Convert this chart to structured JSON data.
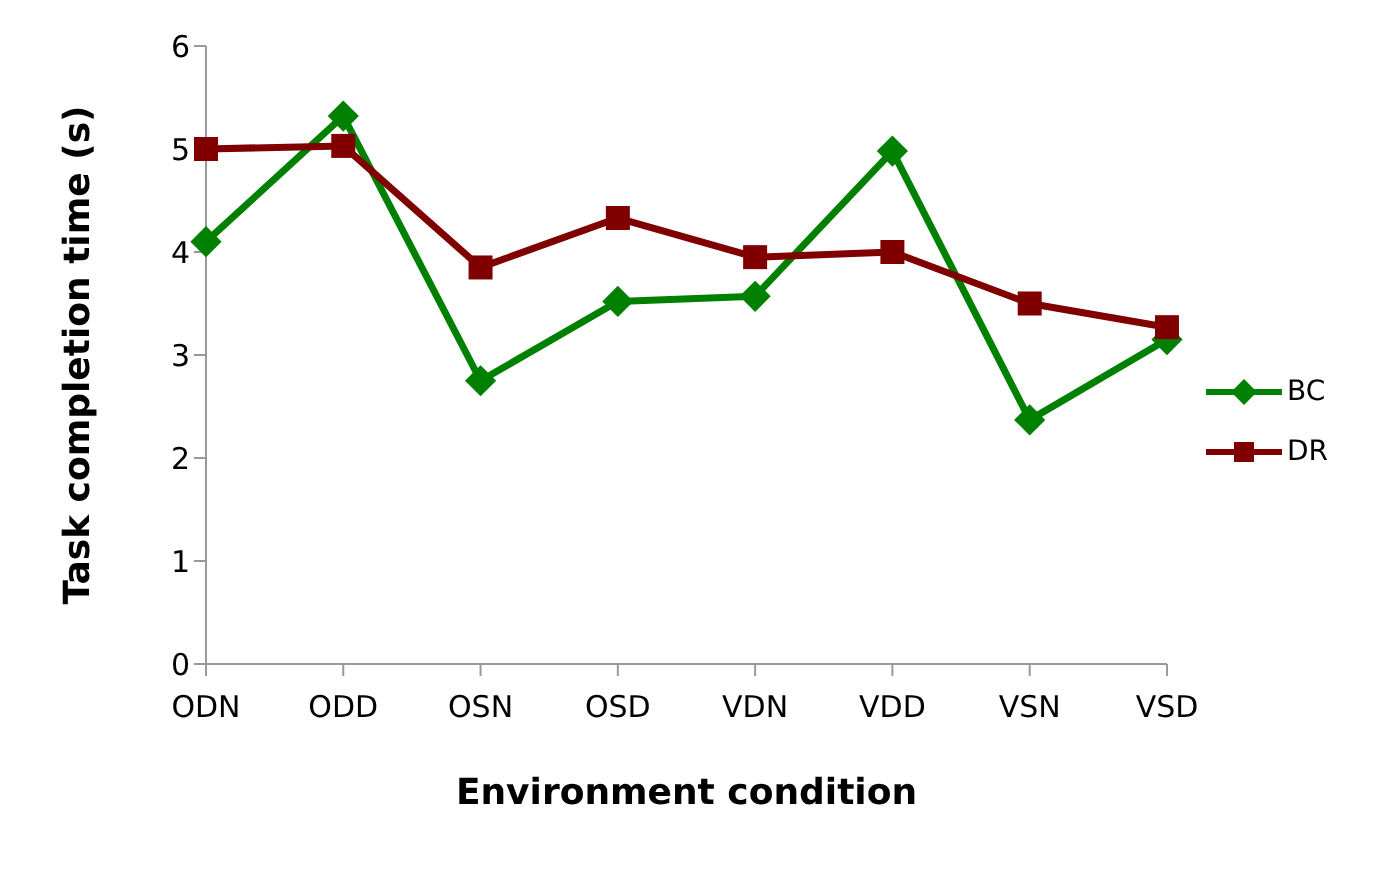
{
  "chart_data": {
    "type": "line",
    "xlabel": "Environment condition",
    "ylabel": "Task completion time (s)",
    "categories": [
      "ODN",
      "ODD",
      "OSN",
      "OSD",
      "VDN",
      "VDD",
      "VSN",
      "VSD"
    ],
    "series": [
      {
        "name": "BC",
        "color": "#008000",
        "marker": "diamond",
        "values": [
          4.1,
          5.32,
          2.75,
          3.52,
          3.57,
          4.98,
          2.37,
          3.15
        ]
      },
      {
        "name": "DR",
        "color": "#800000",
        "marker": "square",
        "values": [
          5.0,
          5.03,
          3.85,
          4.33,
          3.95,
          4.0,
          3.5,
          3.27
        ]
      }
    ],
    "ylim": [
      0,
      6
    ],
    "yticks": [
      0,
      1,
      2,
      3,
      4,
      5,
      6
    ],
    "grid": false,
    "legend": "right"
  }
}
